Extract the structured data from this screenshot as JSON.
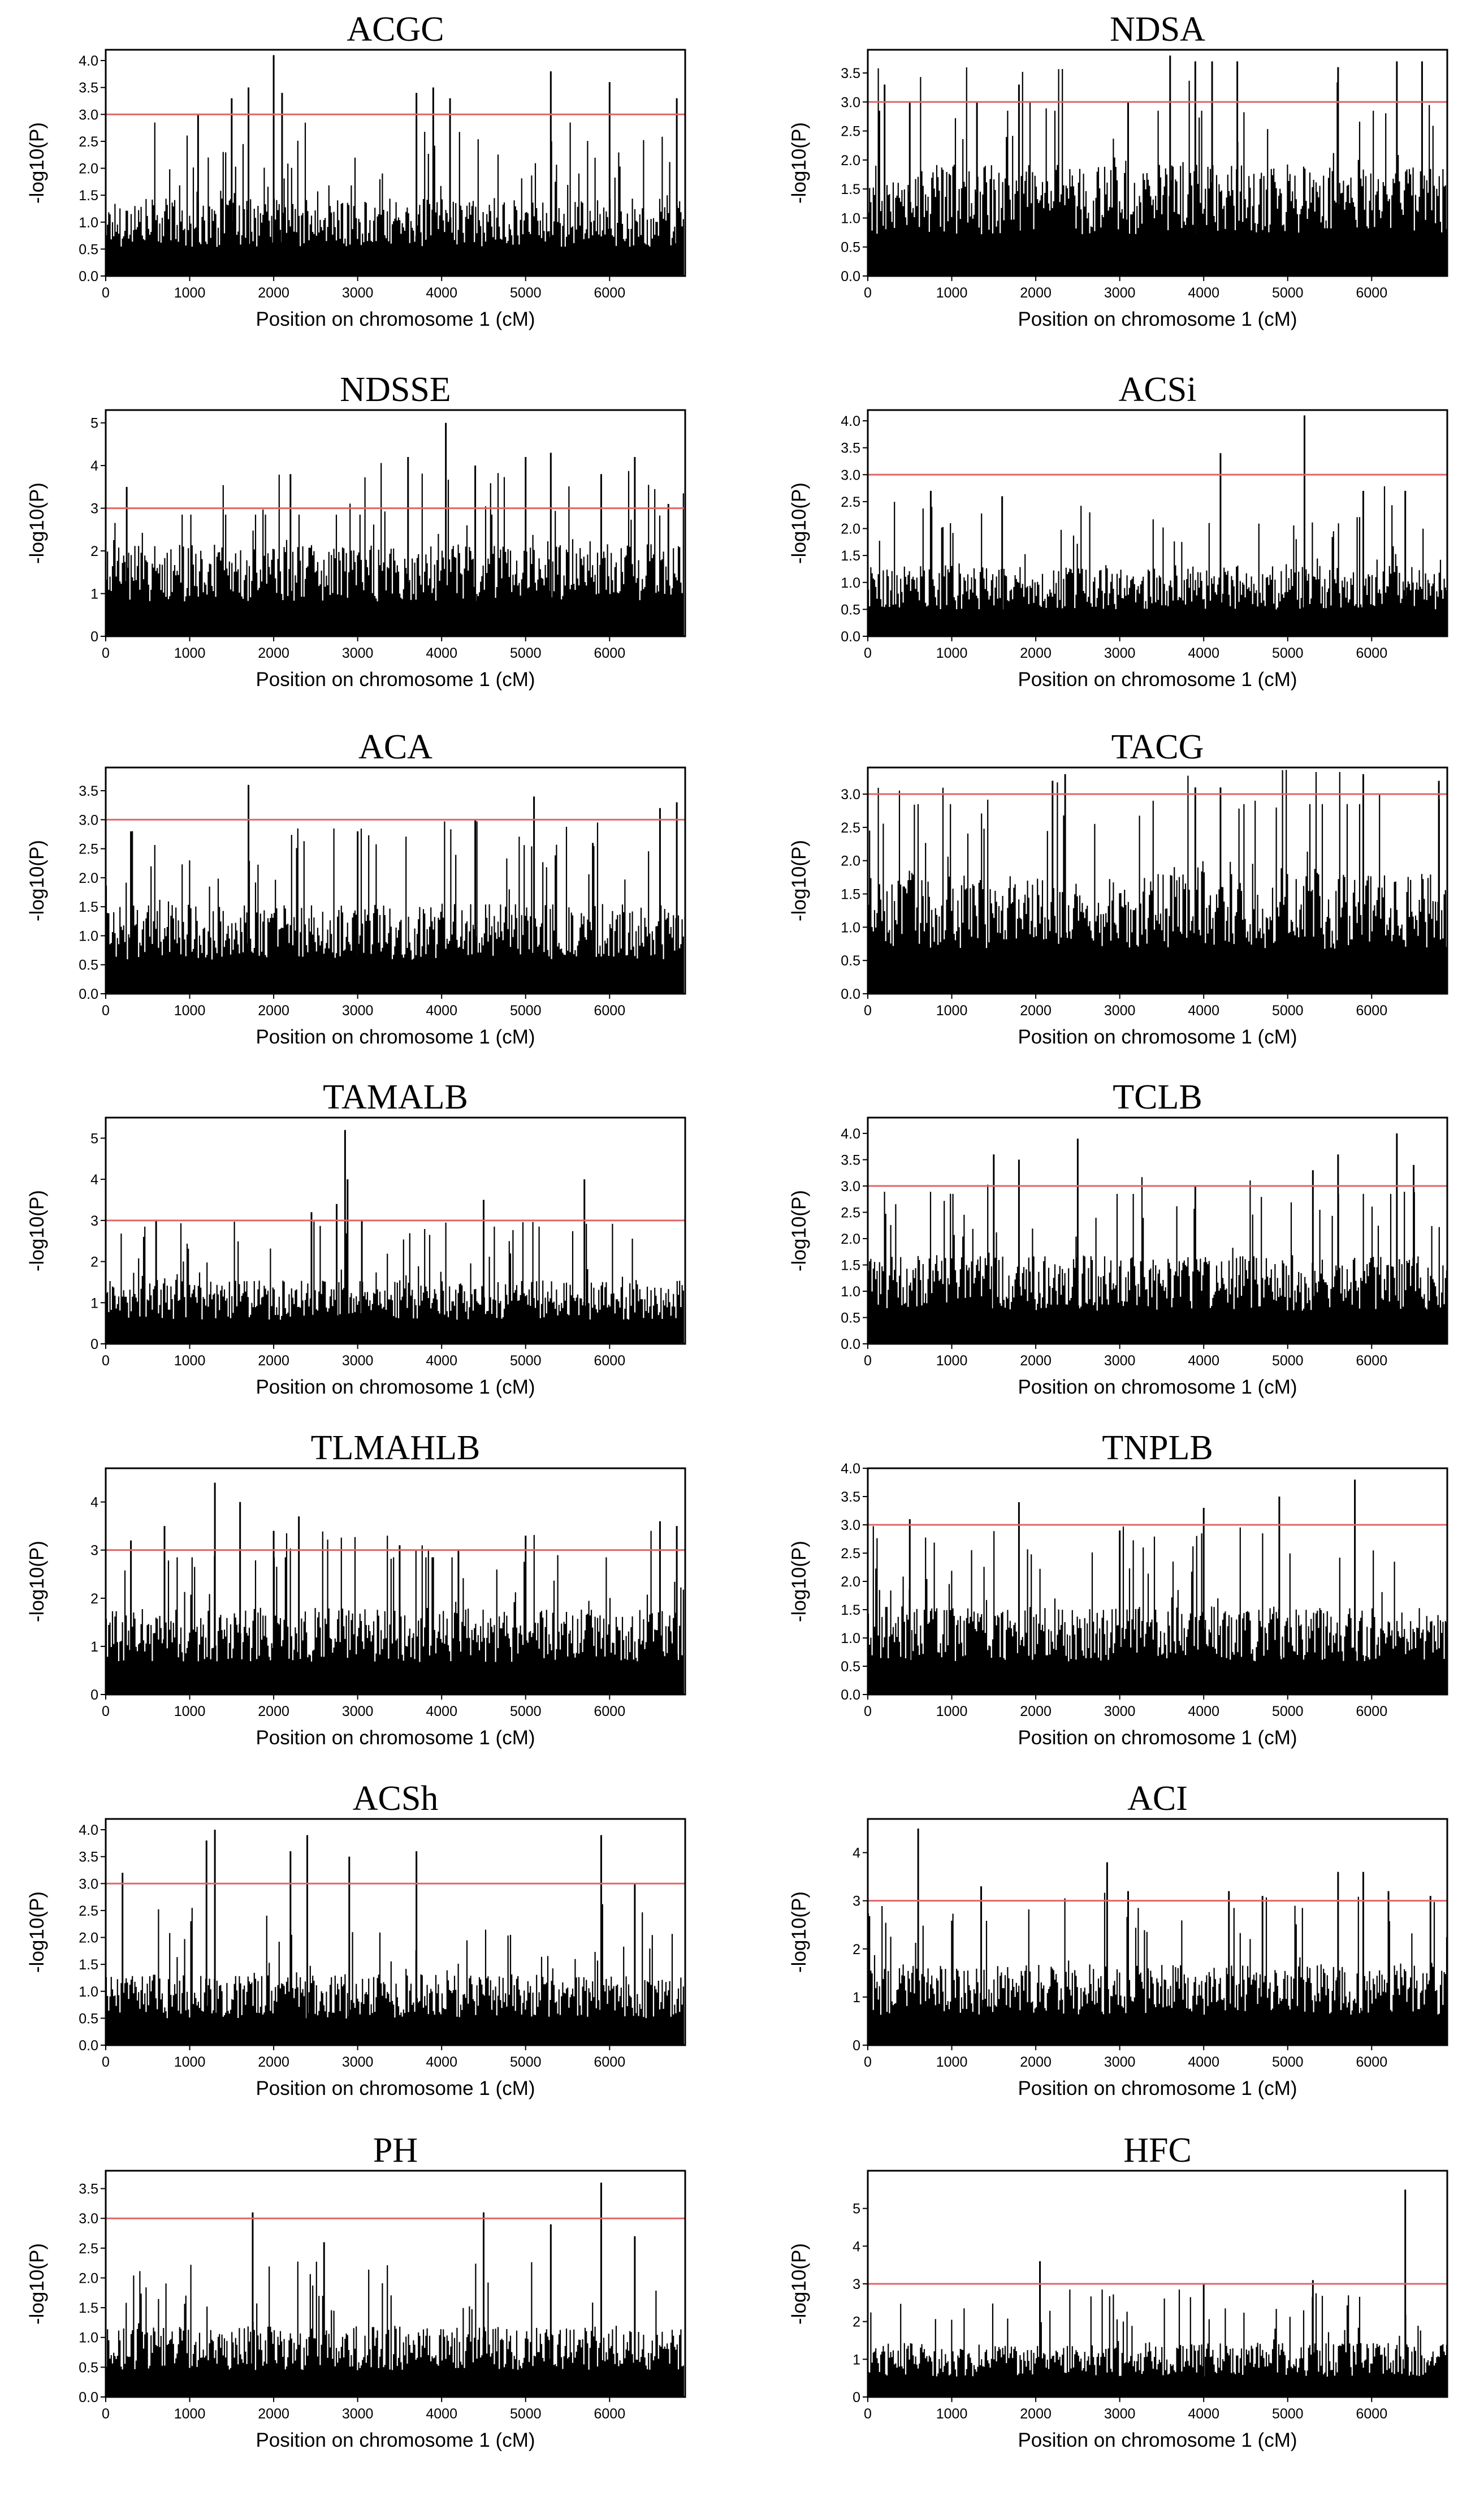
{
  "figure": {
    "colors": {
      "bars": "#000000",
      "threshold": "#e06666",
      "axis": "#000000"
    }
  },
  "chart_data": [
    {
      "type": "bar",
      "title": "ACGC",
      "xlabel": "Position on chromosome 1 (cM)",
      "ylabel": "-log10(P)",
      "xlim": [
        0,
        6900
      ],
      "ylim": [
        0,
        4.2
      ],
      "xticks": [
        "0",
        "1000",
        "2000",
        "3000",
        "4000",
        "5000",
        "6000"
      ],
      "yticks": [
        "0.0",
        "0.5",
        "1.0",
        "1.5",
        "2.0",
        "2.5",
        "3.0",
        "3.5",
        "4.0"
      ],
      "threshold": 3.0,
      "baseline": 1.2,
      "peaks": [
        [
          1100,
          3.0
        ],
        [
          1500,
          3.3
        ],
        [
          1700,
          3.5
        ],
        [
          2000,
          4.1
        ],
        [
          2100,
          3.4
        ],
        [
          3700,
          3.4
        ],
        [
          3900,
          3.5
        ],
        [
          4100,
          3.3
        ],
        [
          5300,
          3.8
        ],
        [
          6000,
          3.6
        ],
        [
          6800,
          3.3
        ]
      ]
    },
    {
      "type": "bar",
      "title": "NDSA",
      "xlabel": "Position on chromosome 1 (cM)",
      "ylabel": "-log10(P)",
      "xlim": [
        0,
        6900
      ],
      "ylim": [
        0,
        3.9
      ],
      "xticks": [
        "0",
        "1000",
        "2000",
        "3000",
        "4000",
        "5000",
        "6000"
      ],
      "yticks": [
        "0.0",
        "0.5",
        "1.0",
        "1.5",
        "2.0",
        "2.5",
        "3.0",
        "3.5"
      ],
      "threshold": 3.0,
      "baseline": 1.6,
      "peaks": [
        [
          200,
          3.3
        ],
        [
          500,
          3.0
        ],
        [
          1300,
          3.0
        ],
        [
          1800,
          3.3
        ],
        [
          3100,
          3.0
        ],
        [
          3600,
          3.8
        ],
        [
          3900,
          3.7
        ],
        [
          4100,
          3.7
        ],
        [
          4400,
          3.7
        ],
        [
          5600,
          3.6
        ],
        [
          6300,
          3.7
        ],
        [
          6600,
          3.7
        ]
      ]
    },
    {
      "type": "bar",
      "title": "NDSSE",
      "xlabel": "Position on chromosome 1 (cM)",
      "ylabel": "-log10(P)",
      "xlim": [
        0,
        6900
      ],
      "ylim": [
        0,
        5.3
      ],
      "xticks": [
        "0",
        "1000",
        "2000",
        "3000",
        "4000",
        "5000",
        "6000"
      ],
      "yticks": [
        "0",
        "1",
        "2",
        "3",
        "4",
        "5"
      ],
      "threshold": 3.0,
      "baseline": 1.8,
      "peaks": [
        [
          250,
          3.5
        ],
        [
          2200,
          3.8
        ],
        [
          3600,
          4.2
        ],
        [
          4050,
          5.0
        ],
        [
          4400,
          4.0
        ],
        [
          5000,
          4.2
        ],
        [
          5300,
          4.3
        ],
        [
          5900,
          3.8
        ],
        [
          6300,
          4.2
        ],
        [
          6700,
          3.1
        ]
      ]
    },
    {
      "type": "bar",
      "title": "ACSi",
      "xlabel": "Position on chromosome 1 (cM)",
      "ylabel": "-log10(P)",
      "xlim": [
        0,
        6900
      ],
      "ylim": [
        0,
        4.2
      ],
      "xticks": [
        "0",
        "1000",
        "2000",
        "3000",
        "4000",
        "5000",
        "6000"
      ],
      "yticks": [
        "0.0",
        "0.5",
        "1.0",
        "1.5",
        "2.0",
        "2.5",
        "3.0",
        "3.5",
        "4.0"
      ],
      "threshold": 3.0,
      "baseline": 1.1,
      "peaks": [
        [
          750,
          2.7
        ],
        [
          1600,
          2.6
        ],
        [
          4200,
          3.4
        ],
        [
          5200,
          4.1
        ],
        [
          5900,
          2.7
        ],
        [
          6400,
          2.7
        ]
      ]
    },
    {
      "type": "bar",
      "title": "ACA",
      "xlabel": "Position on chromosome 1 (cM)",
      "ylabel": "-log10(P)",
      "xlim": [
        0,
        6900
      ],
      "ylim": [
        0,
        3.9
      ],
      "xticks": [
        "0",
        "1000",
        "2000",
        "3000",
        "4000",
        "5000",
        "6000"
      ],
      "yticks": [
        "0.0",
        "0.5",
        "1.0",
        "1.5",
        "2.0",
        "2.5",
        "3.0",
        "3.5"
      ],
      "threshold": 3.0,
      "baseline": 1.3,
      "peaks": [
        [
          300,
          2.8
        ],
        [
          1700,
          3.6
        ],
        [
          3000,
          2.8
        ],
        [
          4400,
          3.0
        ],
        [
          5100,
          3.4
        ],
        [
          5800,
          2.6
        ],
        [
          6600,
          3.2
        ],
        [
          6800,
          3.3
        ]
      ]
    },
    {
      "type": "bar",
      "title": "TACG",
      "xlabel": "Position on chromosome 1 (cM)",
      "ylabel": "-log10(P)",
      "xlim": [
        0,
        6900
      ],
      "ylim": [
        0,
        3.4
      ],
      "xticks": [
        "0",
        "1000",
        "2000",
        "3000",
        "4000",
        "5000",
        "6000"
      ],
      "yticks": [
        "0.0",
        "0.5",
        "1.0",
        "1.5",
        "2.0",
        "2.5",
        "3.0"
      ],
      "threshold": 3.0,
      "baseline": 1.5,
      "peaks": [
        [
          2200,
          3.2
        ],
        [
          2350,
          3.3
        ],
        [
          3900,
          3.1
        ],
        [
          4200,
          3.1
        ],
        [
          5900,
          3.3
        ],
        [
          6800,
          3.2
        ]
      ]
    },
    {
      "type": "bar",
      "title": "TAMALB",
      "xlabel": "Position on chromosome 1 (cM)",
      "ylabel": "-log10(P)",
      "xlim": [
        0,
        6900
      ],
      "ylim": [
        0,
        5.5
      ],
      "xticks": [
        "0",
        "1000",
        "2000",
        "3000",
        "4000",
        "5000",
        "6000"
      ],
      "yticks": [
        "0",
        "1",
        "2",
        "3",
        "4",
        "5"
      ],
      "threshold": 3.0,
      "baseline": 1.3,
      "peaks": [
        [
          600,
          3.0
        ],
        [
          2450,
          3.2
        ],
        [
          2750,
          3.4
        ],
        [
          2850,
          5.2
        ],
        [
          2880,
          4.0
        ],
        [
          3050,
          3.0
        ],
        [
          4500,
          3.5
        ],
        [
          5700,
          4.0
        ]
      ]
    },
    {
      "type": "bar",
      "title": "TCLB",
      "xlabel": "Position on chromosome 1 (cM)",
      "ylabel": "-log10(P)",
      "xlim": [
        0,
        6900
      ],
      "ylim": [
        0,
        4.3
      ],
      "xticks": [
        "0",
        "1000",
        "2000",
        "3000",
        "4000",
        "5000",
        "6000"
      ],
      "yticks": [
        "0.0",
        "0.5",
        "1.0",
        "1.5",
        "2.0",
        "2.5",
        "3.0",
        "3.5",
        "4.0"
      ],
      "threshold": 3.0,
      "baseline": 1.4,
      "peaks": [
        [
          1500,
          3.6
        ],
        [
          1800,
          3.5
        ],
        [
          2500,
          3.9
        ],
        [
          3900,
          3.0
        ],
        [
          5300,
          3.3
        ],
        [
          5600,
          3.6
        ],
        [
          6300,
          4.0
        ],
        [
          6500,
          3.4
        ]
      ]
    },
    {
      "type": "bar",
      "title": "TLMAHLB",
      "xlabel": "Position on chromosome 1 (cM)",
      "ylabel": "-log10(P)",
      "xlim": [
        0,
        6900
      ],
      "ylim": [
        0,
        4.7
      ],
      "xticks": [
        "0",
        "1000",
        "2000",
        "3000",
        "4000",
        "5000",
        "6000"
      ],
      "yticks": [
        "0",
        "1",
        "2",
        "3",
        "4"
      ],
      "threshold": 3.0,
      "baseline": 1.5,
      "peaks": [
        [
          300,
          3.2
        ],
        [
          700,
          3.5
        ],
        [
          1300,
          4.4
        ],
        [
          1600,
          4.0
        ],
        [
          2000,
          3.4
        ],
        [
          2300,
          3.7
        ],
        [
          3500,
          3.1
        ],
        [
          4200,
          3.0
        ],
        [
          5000,
          3.3
        ],
        [
          6600,
          3.6
        ],
        [
          6800,
          3.5
        ]
      ]
    },
    {
      "type": "bar",
      "title": "TNPLB",
      "xlabel": "Position on chromosome 1 (cM)",
      "ylabel": "-log10(P)",
      "xlim": [
        0,
        6900
      ],
      "ylim": [
        0,
        4.0
      ],
      "xticks": [
        "0",
        "1000",
        "2000",
        "3000",
        "4000",
        "5000",
        "6000"
      ],
      "yticks": [
        "0.0",
        "0.5",
        "1.0",
        "1.5",
        "2.0",
        "2.5",
        "3.0",
        "3.5",
        "4.0"
      ],
      "threshold": 3.0,
      "baseline": 1.3,
      "peaks": [
        [
          500,
          3.1
        ],
        [
          1800,
          3.4
        ],
        [
          3000,
          2.9
        ],
        [
          4000,
          3.3
        ],
        [
          4900,
          3.5
        ],
        [
          5800,
          3.8
        ]
      ]
    },
    {
      "type": "bar",
      "title": "ACSh",
      "xlabel": "Position on chromosome 1 (cM)",
      "ylabel": "-log10(P)",
      "xlim": [
        0,
        6900
      ],
      "ylim": [
        0,
        4.2
      ],
      "xticks": [
        "0",
        "1000",
        "2000",
        "3000",
        "4000",
        "5000",
        "6000"
      ],
      "yticks": [
        "0.0",
        "0.5",
        "1.0",
        "1.5",
        "2.0",
        "2.5",
        "3.0",
        "3.5",
        "4.0"
      ],
      "threshold": 3.0,
      "baseline": 1.1,
      "peaks": [
        [
          200,
          3.2
        ],
        [
          1200,
          3.8
        ],
        [
          1300,
          4.0
        ],
        [
          2200,
          3.6
        ],
        [
          2400,
          3.9
        ],
        [
          2900,
          3.5
        ],
        [
          3700,
          3.6
        ],
        [
          5900,
          3.9
        ],
        [
          6300,
          3.0
        ]
      ]
    },
    {
      "type": "bar",
      "title": "ACI",
      "xlabel": "Position on chromosome 1 (cM)",
      "ylabel": "-log10(P)",
      "xlim": [
        0,
        6900
      ],
      "ylim": [
        0,
        4.7
      ],
      "xticks": [
        "0",
        "1000",
        "2000",
        "3000",
        "4000",
        "5000",
        "6000"
      ],
      "yticks": [
        "0",
        "1",
        "2",
        "3",
        "4"
      ],
      "threshold": 3.0,
      "baseline": 1.4,
      "peaks": [
        [
          600,
          4.5
        ],
        [
          1350,
          3.3
        ],
        [
          2850,
          3.8
        ],
        [
          3100,
          3.2
        ],
        [
          4300,
          3.2
        ],
        [
          4700,
          3.1
        ],
        [
          5600,
          3.6
        ],
        [
          5900,
          3.6
        ],
        [
          6200,
          3.2
        ],
        [
          6700,
          3.1
        ]
      ]
    },
    {
      "type": "bar",
      "title": "PH",
      "xlabel": "Position on chromosome 1 (cM)",
      "ylabel": "-log10(P)",
      "xlim": [
        0,
        6900
      ],
      "ylim": [
        0,
        3.8
      ],
      "xticks": [
        "0",
        "1000",
        "2000",
        "3000",
        "4000",
        "5000",
        "6000"
      ],
      "yticks": [
        "0.0",
        "0.5",
        "1.0",
        "1.5",
        "2.0",
        "2.5",
        "3.0",
        "3.5"
      ],
      "threshold": 3.0,
      "baseline": 1.0,
      "peaks": [
        [
          1750,
          3.1
        ],
        [
          2600,
          2.6
        ],
        [
          4500,
          3.1
        ],
        [
          5300,
          2.9
        ],
        [
          5900,
          3.6
        ],
        [
          6300,
          2.7
        ]
      ]
    },
    {
      "type": "bar",
      "title": "HFC",
      "xlabel": "Position on chromosome 1 (cM)",
      "ylabel": "-log10(P)",
      "xlim": [
        0,
        6900
      ],
      "ylim": [
        0,
        6.0
      ],
      "xticks": [
        "0",
        "1000",
        "2000",
        "3000",
        "4000",
        "5000",
        "6000"
      ],
      "yticks": [
        "0",
        "1",
        "2",
        "3",
        "4",
        "5"
      ],
      "threshold": 3.0,
      "baseline": 1.2,
      "peaks": [
        [
          2050,
          3.6
        ],
        [
          4000,
          3.0
        ],
        [
          5300,
          3.1
        ],
        [
          6400,
          5.5
        ]
      ]
    }
  ]
}
